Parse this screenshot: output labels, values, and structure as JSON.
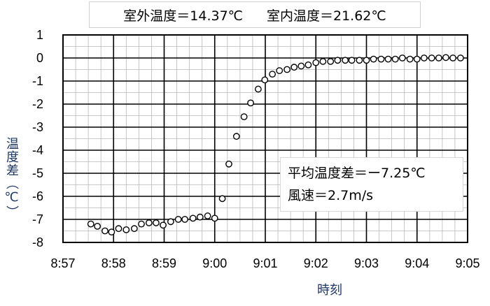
{
  "chart_data": {
    "type": "scatter",
    "header": {
      "outdoor_temp": "室外温度＝14.37℃",
      "indoor_temp": "室内温度＝21.62℃"
    },
    "annotation": {
      "avg_temp_diff": "平均温度差＝ー7.25℃",
      "wind_speed": "風速＝2.7m/s"
    },
    "xlabel": "時刻",
    "ylabel": "温度差（℃）",
    "x_ticks": [
      "8:57",
      "8:58",
      "8:59",
      "9:00",
      "9:01",
      "9:02",
      "9:03",
      "9:04",
      "9:05"
    ],
    "y_ticks": [
      "1",
      "0",
      "-1",
      "-2",
      "-3",
      "-4",
      "-5",
      "-6",
      "-7",
      "-8"
    ],
    "xlim_min": [
      0,
      8
    ],
    "ylim": [
      -8,
      1
    ],
    "grid": true,
    "marker": "open-circle",
    "points": [
      [
        0.55,
        -7.2
      ],
      [
        0.68,
        -7.3
      ],
      [
        0.83,
        -7.5
      ],
      [
        0.96,
        -7.55
      ],
      [
        1.1,
        -7.4
      ],
      [
        1.25,
        -7.45
      ],
      [
        1.41,
        -7.4
      ],
      [
        1.55,
        -7.2
      ],
      [
        1.7,
        -7.15
      ],
      [
        1.84,
        -7.15
      ],
      [
        1.98,
        -7.25
      ],
      [
        2.13,
        -7.1
      ],
      [
        2.28,
        -7.0
      ],
      [
        2.41,
        -7.0
      ],
      [
        2.57,
        -6.95
      ],
      [
        2.71,
        -6.9
      ],
      [
        2.86,
        -6.85
      ],
      [
        3.0,
        -6.95
      ],
      [
        3.15,
        -6.1
      ],
      [
        3.28,
        -4.6
      ],
      [
        3.43,
        -3.4
      ],
      [
        3.58,
        -2.55
      ],
      [
        3.71,
        -1.95
      ],
      [
        3.86,
        -1.35
      ],
      [
        3.99,
        -0.95
      ],
      [
        4.14,
        -0.7
      ],
      [
        4.28,
        -0.55
      ],
      [
        4.43,
        -0.5
      ],
      [
        4.57,
        -0.4
      ],
      [
        4.71,
        -0.35
      ],
      [
        4.85,
        -0.3
      ],
      [
        5.0,
        -0.2
      ],
      [
        5.14,
        -0.15
      ],
      [
        5.29,
        -0.15
      ],
      [
        5.43,
        -0.1
      ],
      [
        5.58,
        -0.1
      ],
      [
        5.71,
        -0.1
      ],
      [
        5.86,
        -0.1
      ],
      [
        6.0,
        -0.1
      ],
      [
        6.14,
        -0.05
      ],
      [
        6.29,
        -0.05
      ],
      [
        6.43,
        -0.05
      ],
      [
        6.57,
        -0.05
      ],
      [
        6.71,
        0.0
      ],
      [
        6.86,
        -0.05
      ],
      [
        7.0,
        -0.05
      ],
      [
        7.14,
        0.0
      ],
      [
        7.29,
        0.0
      ],
      [
        7.43,
        0.0
      ],
      [
        7.57,
        0.02
      ],
      [
        7.71,
        0.0
      ],
      [
        7.86,
        0.0
      ]
    ]
  }
}
